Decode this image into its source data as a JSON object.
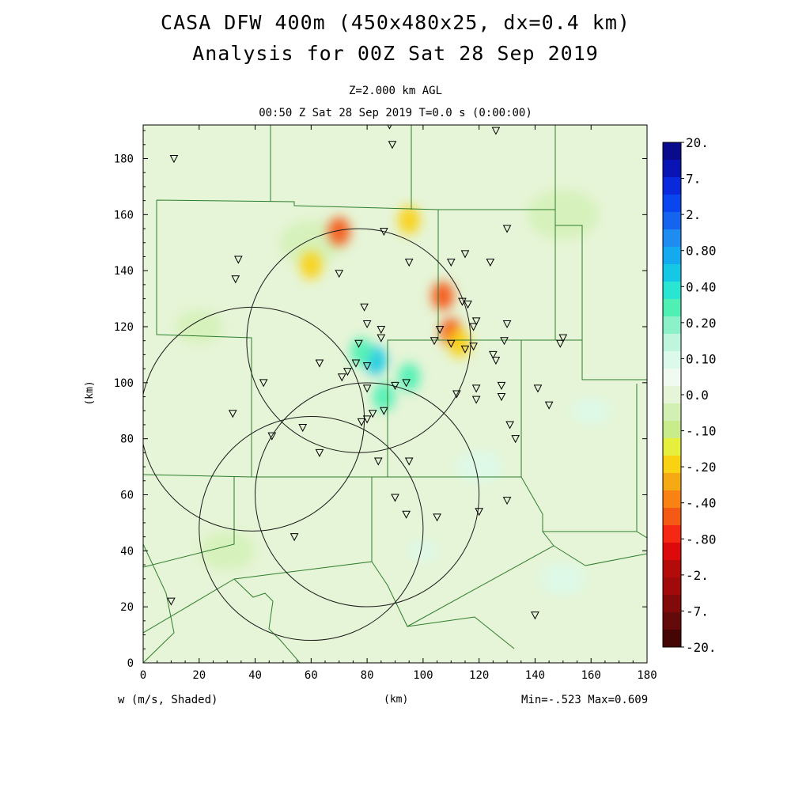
{
  "header": {
    "title_line1": "CASA DFW 400m (450x480x25, dx=0.4 km)",
    "title_line2": "Analysis for 00Z Sat 28 Sep 2019",
    "level": "Z=2.000 km AGL",
    "valid_time": "00:50 Z Sat 28 Sep 2019   T=0.0 s (0:00:00)"
  },
  "footer": {
    "field_label": "w (m/s, Shaded)",
    "axis_unit": "(km)",
    "minmax": "Min=-.523 Max=0.609"
  },
  "chart_data": {
    "type": "heatmap",
    "field": "w",
    "units": "m/s",
    "xlabel": "(km)",
    "ylabel": "(km)",
    "xlim": [
      0,
      180
    ],
    "ylim": [
      0,
      192
    ],
    "x_ticks": [
      0,
      20,
      40,
      60,
      80,
      100,
      120,
      140,
      160,
      180
    ],
    "y_ticks": [
      0,
      20,
      40,
      60,
      80,
      100,
      120,
      140,
      160,
      180
    ],
    "min": -0.523,
    "max": 0.609,
    "colorbar": {
      "labels": [
        "20.",
        "7.",
        "2.",
        "0.80",
        "0.40",
        "0.20",
        "0.10",
        "0.0",
        "-.10",
        "-.20",
        "-.40",
        "-.80",
        "-2.",
        "-7.",
        "-20."
      ],
      "colors": [
        "#0a0a8c",
        "#0a14b4",
        "#0a28dc",
        "#0a46f0",
        "#1464f0",
        "#1e8cf0",
        "#14aaf0",
        "#14c8e6",
        "#28e6d2",
        "#50f0b4",
        "#8cf0c8",
        "#bef5dc",
        "#dcfaeb",
        "#f0faf0",
        "#e6f5d7",
        "#d2f0b4",
        "#c8eb8c",
        "#e6f03c",
        "#fad214",
        "#f5aa14",
        "#fa8214",
        "#f55a14",
        "#f52814",
        "#dc0a0a",
        "#b40a0a",
        "#a00a0a",
        "#820a0a",
        "#640a0a",
        "#460505"
      ]
    },
    "features": [
      {
        "x": 70,
        "y": 154,
        "w": -0.4
      },
      {
        "x": 110,
        "y": 118,
        "w": -0.4
      },
      {
        "x": 107,
        "y": 131,
        "w": -0.45
      },
      {
        "x": 113,
        "y": 114,
        "w": -0.3
      },
      {
        "x": 83,
        "y": 108,
        "w": 0.4
      },
      {
        "x": 78,
        "y": 111,
        "w": 0.3
      },
      {
        "x": 86,
        "y": 95,
        "w": 0.3
      },
      {
        "x": 95,
        "y": 102,
        "w": 0.25
      },
      {
        "x": 60,
        "y": 142,
        "w": -0.25
      },
      {
        "x": 95,
        "y": 158,
        "w": -0.3
      }
    ],
    "radar_rings": [
      {
        "x": 77,
        "y": 115,
        "r": 40
      },
      {
        "x": 39,
        "y": 87,
        "r": 40
      },
      {
        "x": 60,
        "y": 48,
        "r": 40
      },
      {
        "x": 80,
        "y": 60,
        "r": 40
      }
    ],
    "stations": [
      [
        11,
        180
      ],
      [
        34,
        144
      ],
      [
        33,
        137
      ],
      [
        88,
        192
      ],
      [
        89,
        185
      ],
      [
        126,
        190
      ],
      [
        86,
        154
      ],
      [
        95,
        143
      ],
      [
        110,
        143
      ],
      [
        115,
        146
      ],
      [
        124,
        143
      ],
      [
        130,
        155
      ],
      [
        70,
        139
      ],
      [
        79,
        127
      ],
      [
        80,
        121
      ],
      [
        85,
        119
      ],
      [
        85,
        116
      ],
      [
        106,
        119
      ],
      [
        114,
        129
      ],
      [
        116,
        128
      ],
      [
        118,
        120
      ],
      [
        119,
        122
      ],
      [
        130,
        121
      ],
      [
        129,
        115
      ],
      [
        77,
        114
      ],
      [
        76,
        107
      ],
      [
        80,
        106
      ],
      [
        73,
        104
      ],
      [
        71,
        102
      ],
      [
        63,
        107
      ],
      [
        43,
        100
      ],
      [
        80,
        98
      ],
      [
        90,
        99
      ],
      [
        94,
        100
      ],
      [
        104,
        115
      ],
      [
        110,
        114
      ],
      [
        115,
        112
      ],
      [
        118,
        113
      ],
      [
        125,
        110
      ],
      [
        126,
        108
      ],
      [
        128,
        99
      ],
      [
        128,
        95
      ],
      [
        119,
        98
      ],
      [
        112,
        96
      ],
      [
        119,
        94
      ],
      [
        141,
        98
      ],
      [
        145,
        92
      ],
      [
        149,
        114
      ],
      [
        150,
        116
      ],
      [
        32,
        89
      ],
      [
        46,
        81
      ],
      [
        57,
        84
      ],
      [
        63,
        75
      ],
      [
        78,
        86
      ],
      [
        80,
        87
      ],
      [
        82,
        89
      ],
      [
        86,
        90
      ],
      [
        84,
        72
      ],
      [
        95,
        72
      ],
      [
        90,
        59
      ],
      [
        94,
        53
      ],
      [
        105,
        52
      ],
      [
        120,
        54
      ],
      [
        130,
        58
      ],
      [
        133,
        80
      ],
      [
        131,
        85
      ],
      [
        54,
        45
      ],
      [
        10,
        22
      ],
      [
        140,
        17
      ]
    ]
  }
}
